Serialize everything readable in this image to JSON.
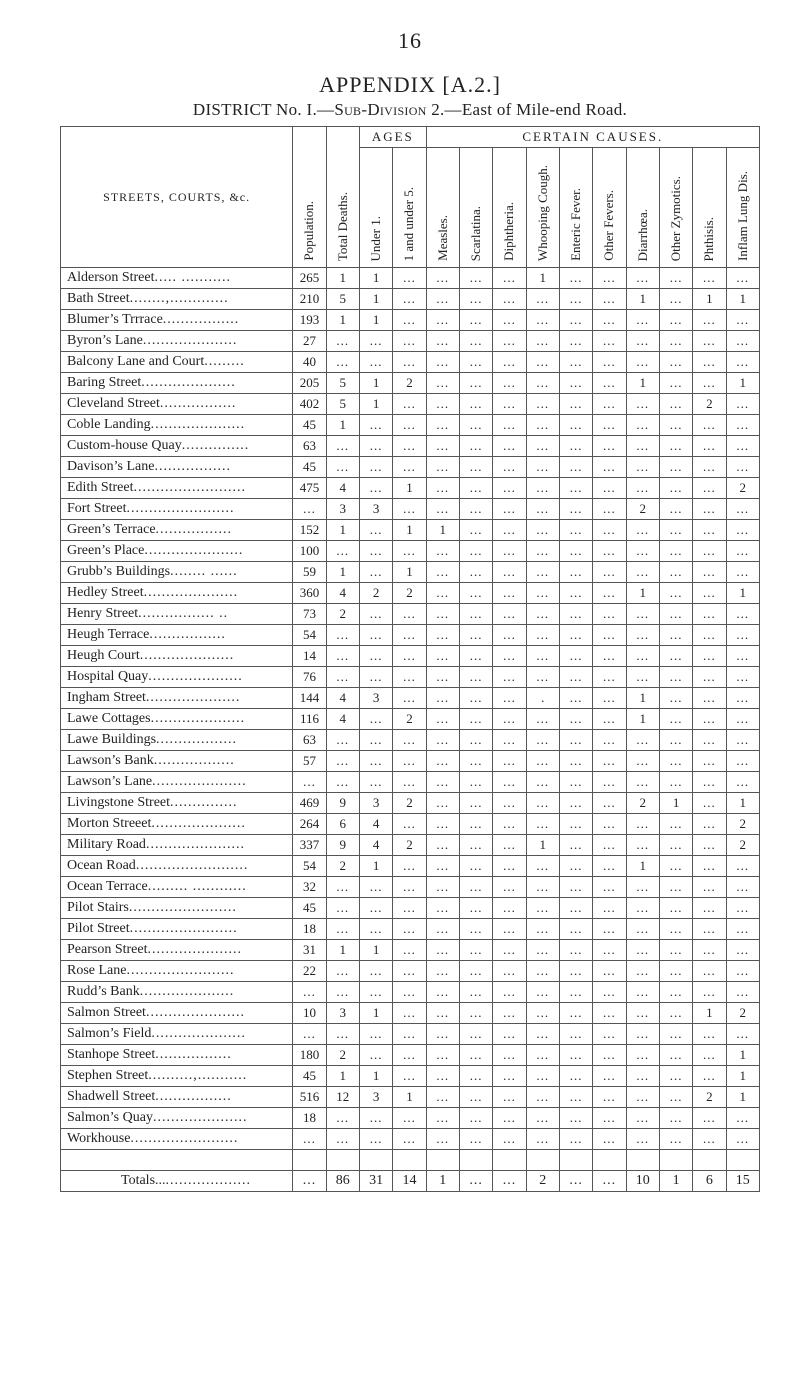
{
  "page_number": "16",
  "appendix_label": "APPENDIX [A.2.]",
  "district_line_prefix": "DISTRICT No. I.—",
  "district_line_smallcaps": "Sub-Division",
  "district_line_suffix": " 2.—East of Mile-end Road.",
  "headers": {
    "streets": "STREETS, COURTS, &c.",
    "ages": "AGES",
    "causes": "CERTAIN CAUSES.",
    "cols": [
      "Population.",
      "Total Deaths.",
      "Under 1.",
      "1 and under 5.",
      "Measles.",
      "Scarlatina.",
      "Diphtheria.",
      "Whooping Cough.",
      "Enteric Fever.",
      "Other Fevers.",
      "Diarrhœa.",
      "Other Zymotics.",
      "Phthisis.",
      "Inflam Lung Dis."
    ]
  },
  "colwidths": {
    "street": 230,
    "data": 33
  },
  "dotcell": "...",
  "totals_label": "Totals...",
  "totals_leader": " ...................",
  "rows": [
    {
      "name": "Alderson Street",
      "leader": "  ..... ...........",
      "vals": [
        "265",
        "1",
        "1",
        "...",
        "...",
        "...",
        "...",
        "1",
        "...",
        "...",
        "...",
        "...",
        "...",
        "..."
      ]
    },
    {
      "name": "Bath Street",
      "leader": " ........,.............",
      "vals": [
        "210",
        "5",
        "1",
        "...",
        "...",
        "...",
        "...",
        "...",
        "...",
        "...",
        "1",
        "...",
        "1",
        "1"
      ]
    },
    {
      "name": "Blumer’s Trrrace",
      "leader": ".................",
      "vals": [
        "193",
        "1",
        "1",
        "...",
        "...",
        "...",
        "...",
        "...",
        "...",
        "...",
        "...",
        "...",
        "...",
        "..."
      ]
    },
    {
      "name": "Byron’s Lane",
      "leader": " .....................",
      "vals": [
        "27",
        "...",
        "...",
        "...",
        "...",
        "...",
        "...",
        "...",
        "...",
        "...",
        "...",
        "...",
        "...",
        "..."
      ]
    },
    {
      "name": "Balcony Lane and Court",
      "leader": ".........",
      "vals": [
        "40",
        "...",
        "...",
        "...",
        "...",
        "...",
        "...",
        "...",
        "...",
        "...",
        "...",
        "...",
        "...",
        "..."
      ]
    },
    {
      "name": "Baring Street",
      "leader": " .....................",
      "vals": [
        "205",
        "5",
        "1",
        "2",
        "...",
        "...",
        "...",
        "...",
        "...",
        "...",
        "1",
        "...",
        "...",
        "1"
      ]
    },
    {
      "name": "Cleveland Street",
      "leader": " .................",
      "vals": [
        "402",
        "5",
        "1",
        "...",
        "...",
        "...",
        "...",
        "...",
        "...",
        "...",
        "...",
        "...",
        "2",
        "..."
      ]
    },
    {
      "name": "Coble Landing",
      "leader": ".....................",
      "vals": [
        "45",
        "1",
        "...",
        "...",
        "...",
        "...",
        "...",
        "...",
        "...",
        "...",
        "...",
        "...",
        "...",
        "..."
      ]
    },
    {
      "name": "Custom-house Quay",
      "leader": "...............",
      "vals": [
        "63",
        "...",
        "...",
        "...",
        "...",
        "...",
        "...",
        "...",
        "...",
        "...",
        "...",
        "...",
        "...",
        "..."
      ]
    },
    {
      "name": "Davison’s Lane",
      "leader": "  .................",
      "vals": [
        "45",
        "...",
        "...",
        "...",
        "...",
        "...",
        "...",
        "...",
        "...",
        "...",
        "...",
        "...",
        "...",
        "..."
      ]
    },
    {
      "name": "Edith Street",
      "leader": ".........................",
      "vals": [
        "475",
        "4",
        "...",
        "1",
        "...",
        "...",
        "...",
        "...",
        "...",
        "...",
        "...",
        "...",
        "...",
        "2"
      ]
    },
    {
      "name": "Fort Street",
      "leader": " ........................",
      "vals": [
        "...",
        "3",
        "3",
        "...",
        "...",
        "...",
        "...",
        "...",
        "...",
        "...",
        "2",
        "...",
        "...",
        "..."
      ]
    },
    {
      "name": "Green’s Terrace",
      "leader": "  .................",
      "vals": [
        "152",
        "1",
        "...",
        "1",
        "1",
        "...",
        "...",
        "...",
        "...",
        "...",
        "...",
        "...",
        "...",
        "..."
      ]
    },
    {
      "name": "Green’s Place",
      "leader": " ......................",
      "vals": [
        "100",
        "...",
        "...",
        "...",
        "...",
        "...",
        "...",
        "...",
        "...",
        "...",
        "...",
        "...",
        "...",
        "..."
      ]
    },
    {
      "name": "Grubb’s Buildings",
      "leader": " ........ ......",
      "vals": [
        "59",
        "1",
        "...",
        "1",
        "...",
        "...",
        "...",
        "...",
        "...",
        "...",
        "...",
        "...",
        "...",
        "..."
      ]
    },
    {
      "name": "Hedley Street",
      "leader": " .....................",
      "vals": [
        "360",
        "4",
        "2",
        "2",
        "...",
        "...",
        "...",
        "...",
        "...",
        "...",
        "1",
        "...",
        "...",
        "1"
      ]
    },
    {
      "name": "Henry Street",
      "leader": "  ................. ..",
      "vals": [
        "73",
        "2",
        "...",
        "...",
        "...",
        "...",
        "...",
        "...",
        "...",
        "...",
        "...",
        "...",
        "...",
        "..."
      ]
    },
    {
      "name": "Heugh Terrace",
      "leader": "   .................",
      "vals": [
        "54",
        "...",
        "...",
        "...",
        "...",
        "...",
        "...",
        "...",
        "...",
        "...",
        "...",
        "...",
        "...",
        "..."
      ]
    },
    {
      "name": "Heugh Court",
      "leader": "  .....................",
      "vals": [
        "14",
        "...",
        "...",
        "...",
        "...",
        "...",
        "...",
        "...",
        "...",
        "...",
        "...",
        "...",
        "...",
        "..."
      ]
    },
    {
      "name": "Hospital Quay",
      "leader": " .....................",
      "vals": [
        "76",
        "...",
        "...",
        "...",
        "...",
        "...",
        "...",
        "...",
        "...",
        "...",
        "...",
        "...",
        "...",
        "..."
      ]
    },
    {
      "name": "Ingham Street",
      "leader": " .....................",
      "vals": [
        "144",
        "4",
        "3",
        "...",
        "...",
        "...",
        "...",
        ".",
        "...",
        "...",
        "1",
        "...",
        "...",
        "..."
      ]
    },
    {
      "name": "Lawe Cottages",
      "leader": " .....................",
      "vals": [
        "116",
        "4",
        "...",
        "2",
        "...",
        "...",
        "...",
        "...",
        "...",
        "...",
        "1",
        "...",
        "...",
        "..."
      ]
    },
    {
      "name": "Lawe Buildings",
      "leader": "  ..................",
      "vals": [
        "63",
        "...",
        "...",
        "...",
        "...",
        "...",
        "...",
        "...",
        "...",
        "...",
        "...",
        "...",
        "...",
        "..."
      ]
    },
    {
      "name": "Lawson’s Bank",
      "leader": "  ..................",
      "vals": [
        "57",
        "...",
        "...",
        "...",
        "...",
        "...",
        "...",
        "...",
        "...",
        "...",
        "...",
        "...",
        "...",
        "..."
      ]
    },
    {
      "name": "Lawson’s Lane",
      "leader": ".....................",
      "vals": [
        "...",
        "...",
        "...",
        "...",
        "...",
        "...",
        "...",
        "...",
        "...",
        "...",
        "...",
        "...",
        "...",
        "..."
      ]
    },
    {
      "name": "Livingstone Street",
      "leader": " ...............",
      "vals": [
        "469",
        "9",
        "3",
        "2",
        "...",
        "...",
        "...",
        "...",
        "...",
        "...",
        "2",
        "1",
        "...",
        "1"
      ]
    },
    {
      "name": "Morton Streeet",
      "leader": ".....................",
      "vals": [
        "264",
        "6",
        "4",
        "...",
        "...",
        "...",
        "...",
        "...",
        "...",
        "...",
        "...",
        "...",
        "...",
        "2"
      ]
    },
    {
      "name": "Military Road",
      "leader": " ......................",
      "vals": [
        "337",
        "9",
        "4",
        "2",
        "...",
        "...",
        "...",
        "1",
        "...",
        "...",
        "...",
        "...",
        "...",
        "2"
      ]
    },
    {
      "name": "Ocean Road",
      "leader": " .........................",
      "vals": [
        "54",
        "2",
        "1",
        "...",
        "...",
        "...",
        "...",
        "...",
        "...",
        "...",
        "1",
        "...",
        "...",
        "..."
      ]
    },
    {
      "name": "Ocean Terrace",
      "leader": " ......... ............",
      "vals": [
        "32",
        "...",
        "...",
        "...",
        "...",
        "...",
        "...",
        "...",
        "...",
        "...",
        "...",
        "...",
        "...",
        "..."
      ]
    },
    {
      "name": "Pilot Stairs",
      "leader": "  ........................",
      "vals": [
        "45",
        "...",
        "...",
        "...",
        "...",
        "...",
        "...",
        "...",
        "...",
        "...",
        "...",
        "...",
        "...",
        "..."
      ]
    },
    {
      "name": "Pilot Street",
      "leader": "  ........................",
      "vals": [
        "18",
        "...",
        "...",
        "...",
        "...",
        "...",
        "...",
        "...",
        "...",
        "...",
        "...",
        "...",
        "...",
        "..."
      ]
    },
    {
      "name": "Pearson Street",
      "leader": ".....................",
      "vals": [
        "31",
        "1",
        "1",
        "...",
        "...",
        "...",
        "...",
        "...",
        "...",
        "...",
        "...",
        "...",
        "...",
        "..."
      ]
    },
    {
      "name": "Rose Lane",
      "leader": "   ........................",
      "vals": [
        "22",
        "...",
        "...",
        "...",
        "...",
        "...",
        "...",
        "...",
        "...",
        "...",
        "...",
        "...",
        "...",
        "..."
      ]
    },
    {
      "name": "Rudd’s Bank",
      "leader": "   .....................",
      "vals": [
        "...",
        "...",
        "...",
        "...",
        "...",
        "...",
        "...",
        "...",
        "...",
        "...",
        "...",
        "...",
        "...",
        "..."
      ]
    },
    {
      "name": "Salmon Street",
      "leader": " ......................",
      "vals": [
        "10",
        "3",
        "1",
        "...",
        "...",
        "...",
        "...",
        "...",
        "...",
        "...",
        "...",
        "...",
        "1",
        "2"
      ]
    },
    {
      "name": "Salmon’s Field",
      "leader": ".....................",
      "vals": [
        "...",
        "...",
        "...",
        "...",
        "...",
        "...",
        "...",
        "...",
        "...",
        "...",
        "...",
        "...",
        "...",
        "..."
      ]
    },
    {
      "name": "Stanhope Street",
      "leader": "  .................",
      "vals": [
        "180",
        "2",
        "...",
        "...",
        "...",
        "...",
        "...",
        "...",
        "...",
        "...",
        "...",
        "...",
        "...",
        "1"
      ]
    },
    {
      "name": "Stephen Street",
      "leader": "..........,...........",
      "vals": [
        "45",
        "1",
        "1",
        "...",
        "...",
        "...",
        "...",
        "...",
        "...",
        "...",
        "...",
        "...",
        "...",
        "1"
      ]
    },
    {
      "name": "Shadwell Street",
      "leader": "  .................",
      "vals": [
        "516",
        "12",
        "3",
        "1",
        "...",
        "...",
        "...",
        "...",
        "...",
        "...",
        "...",
        "...",
        "2",
        "1"
      ]
    },
    {
      "name": "Salmon’s Quay",
      "leader": ".....................",
      "vals": [
        "18",
        "...",
        "...",
        "...",
        "...",
        "...",
        "...",
        "...",
        "...",
        "...",
        "...",
        "...",
        "...",
        "..."
      ]
    },
    {
      "name": "Workhouse",
      "leader": "  ........................",
      "vals": [
        "...",
        "...",
        "...",
        "...",
        "...",
        "...",
        "...",
        "...",
        "...",
        "...",
        "...",
        "...",
        "...",
        "..."
      ]
    }
  ],
  "totals": [
    "...",
    "86",
    "31",
    "14",
    "1",
    "...",
    "...",
    "2",
    "...",
    "...",
    "10",
    "1",
    "6",
    "15"
  ]
}
